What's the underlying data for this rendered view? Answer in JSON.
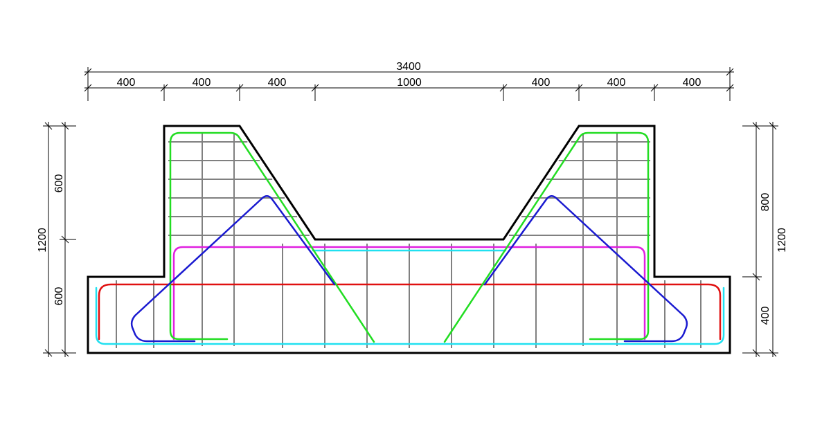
{
  "dimensions": {
    "top_total": "3400",
    "top_segments": [
      "400",
      "400",
      "400",
      "1000",
      "400",
      "400",
      "400"
    ],
    "left_total": "1200",
    "left_segments": [
      "600",
      "600"
    ],
    "right_total": "1200",
    "right_segments": [
      "800",
      "400"
    ]
  },
  "colors": {
    "outline": "#000000",
    "grid": "#808080",
    "green_bar": "#22dd22",
    "blue_bar": "#1a1ad0",
    "magenta_bar": "#e020e0",
    "red_bar": "#e01010",
    "cyan_bar": "#20e0f0"
  }
}
